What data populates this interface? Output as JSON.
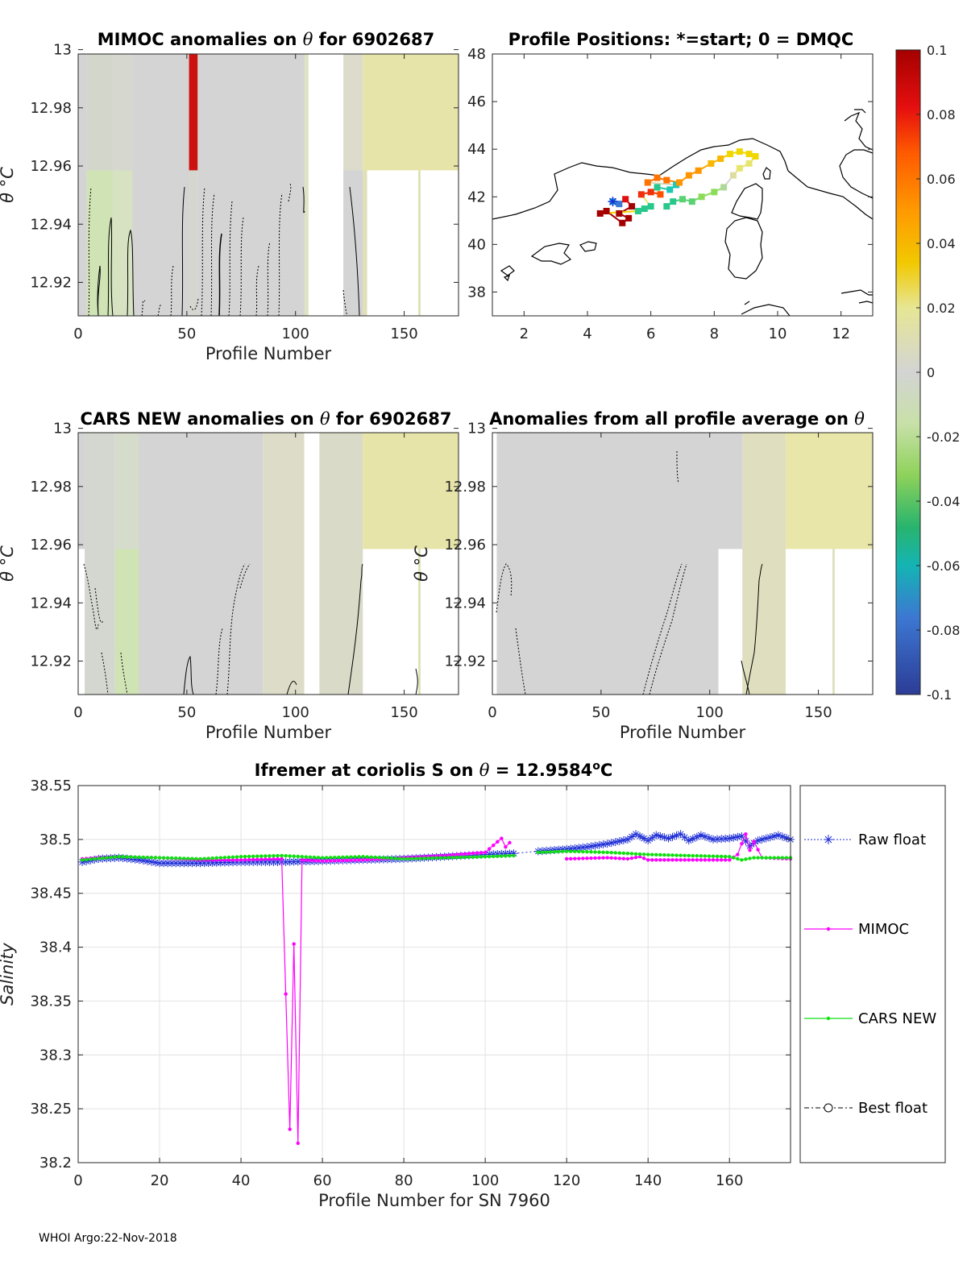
{
  "colors": {
    "raw": "#1f2fd6",
    "mimoc": "#ff00ff",
    "cars": "#10e010",
    "best": "#000000",
    "land": "#000000",
    "gap": "#ffffff"
  },
  "colorbar": {
    "ticks": [
      "0.1",
      "0.08",
      "0.06",
      "0.04",
      "0.02",
      "0",
      "-0.02",
      "-0.04",
      "-0.06",
      "-0.08",
      "-0.1"
    ]
  },
  "footer": "WHOI Argo:22-Nov-2018",
  "chart_data": [
    {
      "id": "p1",
      "type": "heatmap",
      "title_parts": [
        "MIMOC anomalies on ",
        "θ",
        " for 6902687"
      ],
      "xlabel": "Profile Number",
      "ylabel": "θ °C",
      "xlim": [
        0,
        175
      ],
      "ylim": [
        12.9085,
        12.9985
      ],
      "xticks": [
        0,
        50,
        100,
        150
      ],
      "xticklabels": [
        "0",
        "50",
        "100",
        "150"
      ],
      "yticks": [
        12.92,
        12.94,
        12.96,
        12.98,
        13
      ],
      "yticklabels": [
        "12.92",
        "12.94",
        "12.96",
        "12.98",
        "13"
      ],
      "bands": [
        {
          "x0": 0,
          "x1": 4,
          "y": "all",
          "c": "#d3d4d3"
        },
        {
          "x0": 4,
          "x1": 16,
          "y": "low",
          "c": "#cfe3b5"
        },
        {
          "x0": 4,
          "x1": 16,
          "y": "high",
          "c": "#d2d6cb"
        },
        {
          "x0": 16,
          "x1": 25,
          "y": "all",
          "c": "#d6d8d0"
        },
        {
          "x0": 16,
          "x1": 25,
          "y": "low",
          "c": "#d6e2c2"
        },
        {
          "x0": 25,
          "x1": 51,
          "y": "all",
          "c": "#d3d4d3"
        },
        {
          "x0": 51,
          "x1": 55,
          "y": "high",
          "c": "#cc1111"
        },
        {
          "x0": 51,
          "x1": 55,
          "y": "low",
          "c": "#d6d6d0"
        },
        {
          "x0": 55,
          "x1": 104,
          "y": "all",
          "c": "#d3d4d3"
        },
        {
          "x0": 104,
          "x1": 106,
          "y": "all",
          "c": "#dde3c4"
        },
        {
          "x0": 106,
          "x1": 122,
          "y": "all",
          "c": "#ffffff"
        },
        {
          "x0": 122,
          "x1": 131,
          "y": "high",
          "c": "#dddccc"
        },
        {
          "x0": 122,
          "x1": 131,
          "y": "low",
          "c": "#d3d4d3"
        },
        {
          "x0": 131,
          "x1": 175,
          "y": "high",
          "c": "#e6e4a8"
        },
        {
          "x0": 131,
          "x1": 133,
          "y": "low",
          "c": "#e0e0b8"
        },
        {
          "x0": 133,
          "x1": 175,
          "y": "low",
          "c": "#ffffff"
        },
        {
          "x0": 156.5,
          "x1": 157.5,
          "y": "low",
          "c": "#d7e2b0"
        }
      ]
    },
    {
      "id": "p3",
      "type": "heatmap",
      "title_parts": [
        "CARS NEW anomalies on ",
        "θ",
        " for 6902687"
      ],
      "xlabel": "Profile Number",
      "ylabel": "θ °C",
      "xlim": [
        0,
        175
      ],
      "ylim": [
        12.9085,
        12.9985
      ],
      "xticks": [
        0,
        50,
        100,
        150
      ],
      "xticklabels": [
        "0",
        "50",
        "100",
        "150"
      ],
      "yticks": [
        12.92,
        12.94,
        12.96,
        12.98,
        13
      ],
      "yticklabels": [
        "12.92",
        "12.94",
        "12.96",
        "12.98",
        "13"
      ],
      "bands": [
        {
          "x0": 0,
          "x1": 3,
          "y": "low",
          "c": "#ffffff"
        },
        {
          "x0": 0,
          "x1": 3,
          "y": "high",
          "c": "#d3d4d3"
        },
        {
          "x0": 3,
          "x1": 17,
          "y": "all",
          "c": "#d4d7cf"
        },
        {
          "x0": 17,
          "x1": 28,
          "y": "low",
          "c": "#cfe3b5"
        },
        {
          "x0": 17,
          "x1": 28,
          "y": "high",
          "c": "#d5dccb"
        },
        {
          "x0": 28,
          "x1": 85,
          "y": "all",
          "c": "#d3d4d3"
        },
        {
          "x0": 85,
          "x1": 104,
          "y": "all",
          "c": "#dddcc8"
        },
        {
          "x0": 104,
          "x1": 107,
          "y": "all",
          "c": "#ffffff"
        },
        {
          "x0": 107,
          "x1": 111,
          "y": "low",
          "c": "#ffffff"
        },
        {
          "x0": 107,
          "x1": 111,
          "y": "high",
          "c": "#ffffff"
        },
        {
          "x0": 111,
          "x1": 131,
          "y": "all",
          "c": "#d9dac8"
        },
        {
          "x0": 131,
          "x1": 175,
          "y": "high",
          "c": "#e6e4a8"
        },
        {
          "x0": 131,
          "x1": 175,
          "y": "low",
          "c": "#ffffff"
        },
        {
          "x0": 156.5,
          "x1": 157.5,
          "y": "low",
          "c": "#d7e2b0"
        }
      ]
    },
    {
      "id": "p4",
      "type": "heatmap",
      "title_parts": [
        "Anomalies from all profile average on ",
        "θ"
      ],
      "xlabel": "Profile Number",
      "ylabel": "θ °C",
      "xlim": [
        0,
        175
      ],
      "ylim": [
        12.9085,
        12.9985
      ],
      "xticks": [
        0,
        50,
        100,
        150
      ],
      "xticklabels": [
        "0",
        "50",
        "100",
        "150"
      ],
      "yticks": [
        12.92,
        12.94,
        12.96,
        12.98,
        13
      ],
      "yticklabels": [
        "12.92",
        "12.94",
        "12.96",
        "12.98",
        "13"
      ],
      "bands": [
        {
          "x0": 0,
          "x1": 2,
          "y": "all",
          "c": "#ffffff"
        },
        {
          "x0": 2,
          "x1": 104,
          "y": "all",
          "c": "#d3d4d3"
        },
        {
          "x0": 104,
          "x1": 115,
          "y": "high",
          "c": "#d3d4d3"
        },
        {
          "x0": 104,
          "x1": 115,
          "y": "low",
          "c": "#ffffff"
        },
        {
          "x0": 115,
          "x1": 135,
          "y": "all",
          "c": "#dfdfbf"
        },
        {
          "x0": 135,
          "x1": 175,
          "y": "high",
          "c": "#e8e6a8"
        },
        {
          "x0": 135,
          "x1": 175,
          "y": "low",
          "c": "#ffffff"
        },
        {
          "x0": 156.5,
          "x1": 157.5,
          "y": "low",
          "c": "#dcdfb8"
        }
      ]
    },
    {
      "id": "p2",
      "type": "scatter",
      "title": "Profile Positions: *=start; 0 = DMQC",
      "xlim": [
        1,
        13
      ],
      "ylim": [
        37,
        48
      ],
      "xticks": [
        2,
        4,
        6,
        8,
        10,
        12
      ],
      "xticklabels": [
        "2",
        "4",
        "6",
        "8",
        "10",
        "12"
      ],
      "yticks": [
        38,
        40,
        42,
        44,
        46,
        48
      ],
      "yticklabels": [
        "38",
        "40",
        "42",
        "44",
        "46",
        "48"
      ],
      "track": [
        {
          "lon": 4.8,
          "lat": 41.8,
          "v": -0.06
        },
        {
          "lon": 5.0,
          "lat": 41.7,
          "v": -0.08
        },
        {
          "lon": 5.2,
          "lat": 41.9,
          "v": 0.09
        },
        {
          "lon": 5.4,
          "lat": 41.6,
          "v": 0.1
        },
        {
          "lon": 5.0,
          "lat": 41.3,
          "v": 0.1
        },
        {
          "lon": 5.3,
          "lat": 41.1,
          "v": 0.1
        },
        {
          "lon": 5.1,
          "lat": 40.9,
          "v": 0.1
        },
        {
          "lon": 4.6,
          "lat": 41.4,
          "v": 0.1
        },
        {
          "lon": 4.4,
          "lat": 41.3,
          "v": 0.1
        },
        {
          "lon": 5.6,
          "lat": 41.4,
          "v": -0.04
        },
        {
          "lon": 5.8,
          "lat": 41.5,
          "v": -0.04
        },
        {
          "lon": 6.0,
          "lat": 41.6,
          "v": -0.04
        },
        {
          "lon": 5.7,
          "lat": 42.1,
          "v": 0.08
        },
        {
          "lon": 6.0,
          "lat": 42.2,
          "v": 0.08
        },
        {
          "lon": 6.3,
          "lat": 42.1,
          "v": 0.07
        },
        {
          "lon": 6.2,
          "lat": 42.4,
          "v": -0.04
        },
        {
          "lon": 6.6,
          "lat": 42.3,
          "v": -0.05
        },
        {
          "lon": 6.8,
          "lat": 42.5,
          "v": -0.05
        },
        {
          "lon": 5.9,
          "lat": 42.6,
          "v": 0.06
        },
        {
          "lon": 6.2,
          "lat": 42.8,
          "v": 0.06
        },
        {
          "lon": 6.5,
          "lat": 42.7,
          "v": 0.06
        },
        {
          "lon": 6.9,
          "lat": 42.6,
          "v": 0.05
        },
        {
          "lon": 7.2,
          "lat": 42.9,
          "v": 0.05
        },
        {
          "lon": 7.5,
          "lat": 43.1,
          "v": 0.05
        },
        {
          "lon": 7.9,
          "lat": 43.4,
          "v": 0.04
        },
        {
          "lon": 8.2,
          "lat": 43.6,
          "v": 0.04
        },
        {
          "lon": 8.5,
          "lat": 43.8,
          "v": 0.03
        },
        {
          "lon": 8.8,
          "lat": 43.9,
          "v": 0.03
        },
        {
          "lon": 9.1,
          "lat": 43.8,
          "v": 0.03
        },
        {
          "lon": 9.3,
          "lat": 43.7,
          "v": 0.03
        },
        {
          "lon": 9.1,
          "lat": 43.4,
          "v": 0.02
        },
        {
          "lon": 8.8,
          "lat": 43.2,
          "v": 0.02
        },
        {
          "lon": 8.6,
          "lat": 42.9,
          "v": 0.01
        },
        {
          "lon": 8.3,
          "lat": 42.4,
          "v": -0.01
        },
        {
          "lon": 8.0,
          "lat": 42.2,
          "v": -0.02
        },
        {
          "lon": 7.6,
          "lat": 42.0,
          "v": -0.02
        },
        {
          "lon": 7.3,
          "lat": 41.8,
          "v": -0.03
        },
        {
          "lon": 7.0,
          "lat": 41.9,
          "v": -0.03
        },
        {
          "lon": 6.7,
          "lat": 41.8,
          "v": -0.04
        },
        {
          "lon": 6.5,
          "lat": 41.6,
          "v": -0.04
        }
      ]
    },
    {
      "id": "p5",
      "type": "line",
      "title_parts": [
        "Ifremer at coriolis S on ",
        "θ",
        " = 12.9584",
        "o",
        "C"
      ],
      "xlabel": "Profile Number for SN 7960",
      "ylabel": "Salinity",
      "xlim": [
        0,
        175
      ],
      "ylim": [
        38.2,
        38.55
      ],
      "xticks": [
        0,
        20,
        40,
        60,
        80,
        100,
        120,
        140,
        160
      ],
      "xticklabels": [
        "0",
        "20",
        "40",
        "60",
        "80",
        "100",
        "120",
        "140",
        "160"
      ],
      "yticks": [
        38.2,
        38.25,
        38.3,
        38.35,
        38.4,
        38.45,
        38.5,
        38.55
      ],
      "yticklabels": [
        "38.2",
        "38.25",
        "38.3",
        "38.35",
        "38.4",
        "38.45",
        "38.5",
        "38.55"
      ],
      "series": [
        {
          "name": "Raw float",
          "key": "raw",
          "segments": [
            [
              [
                1,
                38.479
              ],
              [
                5,
                38.482
              ],
              [
                10,
                38.483
              ],
              [
                15,
                38.481
              ],
              [
                20,
                38.478
              ],
              [
                30,
                38.478
              ],
              [
                40,
                38.479
              ],
              [
                50,
                38.479
              ],
              [
                60,
                38.48
              ],
              [
                70,
                38.481
              ],
              [
                80,
                38.482
              ],
              [
                90,
                38.484
              ],
              [
                100,
                38.486
              ],
              [
                107,
                38.487
              ]
            ],
            [
              [
                113,
                38.489
              ],
              [
                120,
                38.491
              ],
              [
                125,
                38.493
              ],
              [
                130,
                38.496
              ],
              [
                135,
                38.5
              ],
              [
                137,
                38.505
              ],
              [
                140,
                38.499
              ],
              [
                142,
                38.504
              ],
              [
                145,
                38.501
              ],
              [
                148,
                38.505
              ],
              [
                150,
                38.499
              ],
              [
                153,
                38.504
              ],
              [
                156,
                38.5
              ],
              [
                160,
                38.501
              ],
              [
                163,
                38.503
              ],
              [
                165,
                38.494
              ],
              [
                167,
                38.499
              ],
              [
                170,
                38.502
              ],
              [
                172,
                38.504
              ],
              [
                175,
                38.5
              ]
            ]
          ]
        },
        {
          "name": "MIMOC",
          "key": "mimoc",
          "segments": [
            [
              [
                1,
                38.482
              ],
              [
                10,
                38.484
              ],
              [
                20,
                38.483
              ],
              [
                30,
                38.481
              ],
              [
                40,
                38.481
              ],
              [
                50,
                38.482
              ],
              [
                52,
                38.231
              ],
              [
                53,
                38.403
              ],
              [
                54,
                38.218
              ],
              [
                55,
                38.481
              ],
              [
                60,
                38.48
              ],
              [
                70,
                38.481
              ],
              [
                80,
                38.483
              ],
              [
                90,
                38.485
              ],
              [
                100,
                38.488
              ],
              [
                104,
                38.501
              ],
              [
                105,
                38.493
              ],
              [
                106,
                38.497
              ]
            ],
            [
              [
                120,
                38.482
              ],
              [
                130,
                38.483
              ],
              [
                135,
                38.482
              ],
              [
                138,
                38.484
              ],
              [
                140,
                38.481
              ],
              [
                150,
                38.481
              ],
              [
                160,
                38.481
              ],
              [
                162,
                38.486
              ],
              [
                163,
                38.496
              ],
              [
                164,
                38.505
              ],
              [
                165,
                38.49
              ],
              [
                166,
                38.498
              ],
              [
                168,
                38.483
              ],
              [
                175,
                38.482
              ]
            ]
          ]
        },
        {
          "name": "CARS NEW",
          "key": "cars",
          "segments": [
            [
              [
                1,
                38.481
              ],
              [
                10,
                38.484
              ],
              [
                20,
                38.483
              ],
              [
                30,
                38.482
              ],
              [
                40,
                38.484
              ],
              [
                50,
                38.485
              ],
              [
                60,
                38.483
              ],
              [
                70,
                38.484
              ],
              [
                80,
                38.482
              ],
              [
                90,
                38.483
              ],
              [
                100,
                38.484
              ],
              [
                107,
                38.485
              ]
            ],
            [
              [
                113,
                38.488
              ],
              [
                120,
                38.489
              ],
              [
                130,
                38.488
              ],
              [
                140,
                38.486
              ],
              [
                150,
                38.485
              ],
              [
                160,
                38.484
              ],
              [
                163,
                38.481
              ],
              [
                166,
                38.483
              ],
              [
                175,
                38.483
              ]
            ]
          ]
        },
        {
          "name": "Best float",
          "key": "best",
          "segments": []
        }
      ]
    }
  ]
}
